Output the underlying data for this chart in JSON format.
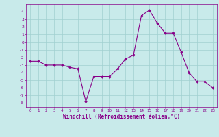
{
  "x": [
    0,
    1,
    2,
    3,
    4,
    5,
    6,
    7,
    8,
    9,
    10,
    11,
    12,
    13,
    14,
    15,
    16,
    17,
    18,
    19,
    20,
    21,
    22,
    23
  ],
  "y": [
    -2.5,
    -2.5,
    -3.0,
    -3.0,
    -3.0,
    -3.3,
    -3.5,
    -7.8,
    -4.5,
    -4.5,
    -4.5,
    -3.5,
    -2.2,
    -1.7,
    3.5,
    4.2,
    2.5,
    1.2,
    1.2,
    -1.3,
    -4.0,
    -5.2,
    -5.2,
    -6.0
  ],
  "line_color": "#880088",
  "marker": "D",
  "marker_size": 1.8,
  "bg_color": "#c8eaea",
  "grid_color": "#a0d0d0",
  "xlabel": "Windchill (Refroidissement éolien,°C)",
  "xlabel_color": "#880088",
  "tick_color": "#880088",
  "ylim": [
    -8.5,
    5.0
  ],
  "xlim": [
    -0.5,
    23.5
  ],
  "yticks": [
    -8,
    -7,
    -6,
    -5,
    -4,
    -3,
    -2,
    -1,
    0,
    1,
    2,
    3,
    4
  ],
  "xticks": [
    0,
    1,
    2,
    3,
    4,
    5,
    6,
    7,
    8,
    9,
    10,
    11,
    12,
    13,
    14,
    15,
    16,
    17,
    18,
    19,
    20,
    21,
    22,
    23
  ]
}
